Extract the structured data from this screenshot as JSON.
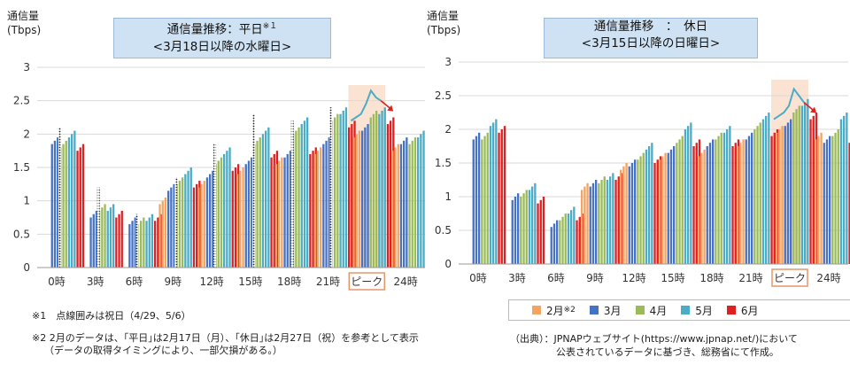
{
  "colors": {
    "feb": "#f4a460",
    "mar": "#4472c4",
    "apr": "#9bbb59",
    "may": "#4bacc6",
    "jun": "#e02020",
    "title_bg": "#cfe2f3",
    "peak_bg": "#fbe3d4",
    "peak_border": "#e6956a",
    "grid": "#d9d9d9"
  },
  "left_panel": {
    "ylabel_line1": "通信量",
    "ylabel_line2": "(Tbps)",
    "title_line1": "通信量推移：平日",
    "title_mark": "※１",
    "title_line2": "<3月18日以降の水曜日>"
  },
  "right_panel": {
    "ylabel_line1": "通信量",
    "ylabel_line2": "(Tbps)",
    "title_line1": "通信量推移　：　休日",
    "title_line2": "<3月15日以降の日曜日>"
  },
  "legend": {
    "items": [
      {
        "label": "2月",
        "mark": "※2",
        "color": "#f4a460"
      },
      {
        "label": "3月",
        "mark": "",
        "color": "#4472c4"
      },
      {
        "label": "4月",
        "mark": "",
        "color": "#9bbb59"
      },
      {
        "label": "5月",
        "mark": "",
        "color": "#4bacc6"
      },
      {
        "label": "6月",
        "mark": "",
        "color": "#e02020"
      }
    ]
  },
  "notes": {
    "n1": "※1　点線囲みは祝日（4/29、5/6）",
    "n2a": "※2 2月のデータは、｢平日｣は2月17日（月）、｢休日｣は2月27日（祝）を参考として表示",
    "n2b": "（データの取得タイミングにより、一部欠損がある。）",
    "src1": "（出典）：JPNAPウェブサイト(https://www.jpnap.net/)において",
    "src2": "公表されているデータに基づき、総務省にて作成。"
  },
  "chart_data": [
    {
      "type": "bar",
      "title": "通信量推移：平日※１ <3月18日以降の水曜日>",
      "ylabel": "通信量 (Tbps)",
      "ylim": [
        0,
        3
      ],
      "yticks": [
        0,
        0.5,
        1,
        1.5,
        2,
        2.5,
        3
      ],
      "categories": [
        "0時",
        "3時",
        "6時",
        "9時",
        "12時",
        "15時",
        "18時",
        "21時",
        "ピーク",
        "24時"
      ],
      "peak_category": "ピーク",
      "series": [
        {
          "name": "2月",
          "values": [
            null,
            null,
            null,
            1.0,
            1.25,
            1.45,
            1.6,
            1.75,
            2.0,
            1.8
          ]
        },
        {
          "name": "3月",
          "values": [
            1.9,
            0.8,
            0.7,
            1.2,
            1.4,
            1.6,
            1.7,
            1.9,
            2.1,
            1.9
          ]
        },
        {
          "name": "4月",
          "values": [
            1.85,
            0.9,
            0.7,
            1.3,
            1.6,
            1.9,
            2.05,
            2.25,
            2.3,
            1.9
          ]
        },
        {
          "name": "5月",
          "values": [
            2.0,
            0.9,
            0.75,
            1.45,
            1.75,
            2.05,
            2.2,
            2.35,
            2.35,
            2.0
          ]
        },
        {
          "name": "6月",
          "values": [
            1.8,
            0.8,
            0.75,
            1.25,
            1.5,
            1.7,
            1.75,
            2.15,
            2.2,
            1.9
          ]
        }
      ],
      "dotted_holiday_bars": [
        {
          "category": "0時",
          "value": 2.1
        },
        {
          "category": "3時",
          "value": 1.2
        },
        {
          "category": "6時",
          "value": 0.8
        },
        {
          "category": "9時",
          "value": 1.35
        },
        {
          "category": "12時",
          "value": 1.85
        },
        {
          "category": "15時",
          "value": 2.3
        },
        {
          "category": "18時",
          "value": 2.2
        },
        {
          "category": "21時",
          "value": 2.4
        }
      ],
      "peak_trend_line": [
        2.2,
        2.25,
        2.3,
        2.45,
        2.65,
        2.55,
        2.5
      ]
    },
    {
      "type": "bar",
      "title": "通信量推移　：　休日 <3月15日以降の日曜日>",
      "ylabel": "通信量 (Tbps)",
      "ylim": [
        0,
        3
      ],
      "yticks": [
        0,
        0.5,
        1,
        1.5,
        2,
        2.5,
        3
      ],
      "categories": [
        "0時",
        "3時",
        "6時",
        "9時",
        "12時",
        "15時",
        "18時",
        "21時",
        "ピーク",
        "24時"
      ],
      "peak_category": "ピーク",
      "series": [
        {
          "name": "2月",
          "values": [
            null,
            null,
            null,
            1.15,
            1.45,
            1.6,
            1.65,
            1.8,
            2.0,
            1.9
          ]
        },
        {
          "name": "3月",
          "values": [
            1.9,
            1.0,
            0.6,
            1.2,
            1.5,
            1.7,
            1.8,
            1.9,
            2.1,
            1.85
          ]
        },
        {
          "name": "4月",
          "values": [
            1.9,
            1.05,
            0.7,
            1.25,
            1.6,
            1.85,
            1.9,
            2.05,
            2.3,
            1.95
          ]
        },
        {
          "name": "5月",
          "values": [
            2.1,
            1.15,
            0.8,
            1.3,
            1.75,
            2.05,
            2.0,
            2.2,
            2.4,
            2.2
          ]
        },
        {
          "name": "6月",
          "values": [
            2.0,
            0.95,
            0.7,
            1.3,
            1.55,
            1.8,
            1.8,
            1.95,
            2.2,
            1.85
          ]
        }
      ],
      "peak_trend_line": [
        2.15,
        2.2,
        2.25,
        2.35,
        2.6,
        2.5,
        2.4
      ]
    }
  ]
}
